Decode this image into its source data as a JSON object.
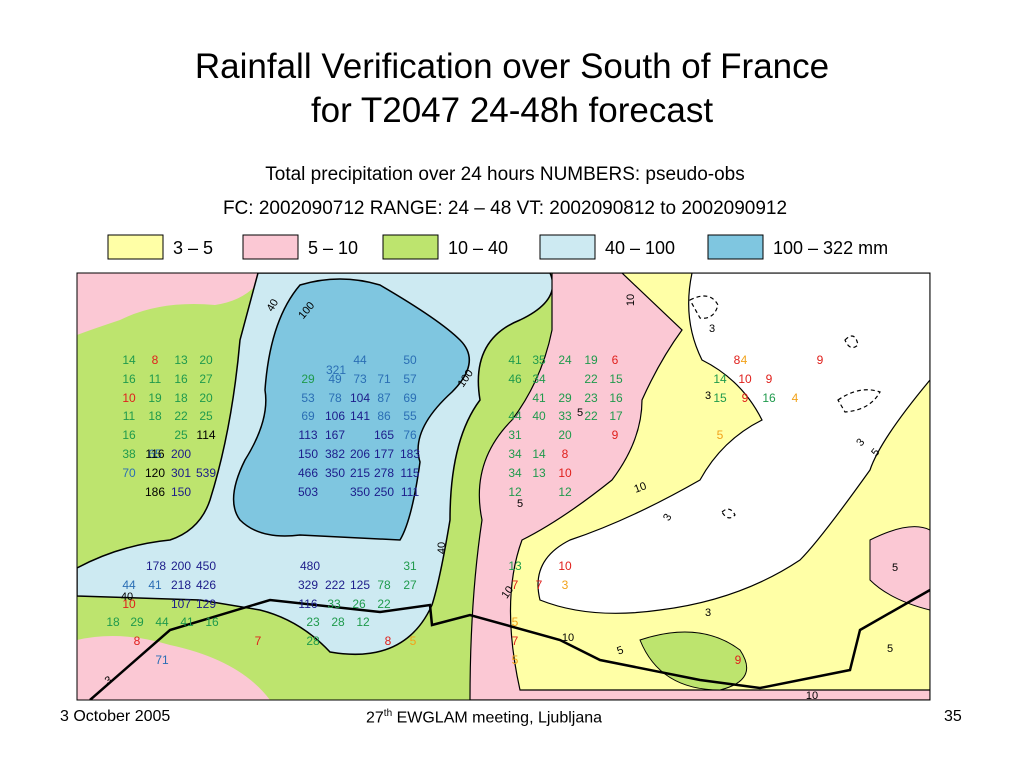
{
  "title": [
    "Rainfall Verification over South of France",
    "for T2047  24-48h forecast"
  ],
  "map": {
    "heading": [
      "Total precipitation over 24 hours  NUMBERS: pseudo-obs",
      "FC: 2002090712   RANGE:  24 – 48    VT: 2002090812 to 2002090912"
    ],
    "legend": [
      {
        "label": "3 – 5",
        "color": "#ffffa6"
      },
      {
        "label": "5 – 10",
        "color": "#fbc8d4"
      },
      {
        "label": "10 – 40",
        "color": "#bde46e"
      },
      {
        "label": "40 – 100",
        "color": "#cdeaf2"
      },
      {
        "label": "100 – 322 mm",
        "color": "#7fc6e0"
      }
    ],
    "observations": [
      {
        "color": "#1f9a4c",
        "values": [
          14,
          13,
          20,
          16,
          11,
          16,
          27,
          19,
          18,
          20,
          11,
          18,
          22,
          25,
          16,
          25,
          38,
          29,
          41,
          35,
          24,
          19,
          46,
          34,
          22,
          15,
          41,
          29,
          23,
          16,
          44,
          40,
          33,
          22,
          17,
          31,
          20,
          34,
          14,
          34,
          13,
          12,
          12,
          13,
          31,
          78,
          27,
          14,
          15,
          16,
          18,
          29,
          44,
          41,
          16,
          23,
          28,
          12,
          28,
          33,
          26,
          22
        ]
      },
      {
        "color": "#e0201c",
        "values": [
          8,
          10,
          6,
          8,
          9,
          10,
          9,
          9,
          9,
          8,
          10,
          10,
          7,
          7,
          10,
          8,
          7,
          8,
          7,
          9
        ]
      },
      {
        "color": "#f2a21a",
        "values": [
          4,
          4,
          5,
          3,
          5,
          5,
          5
        ]
      },
      {
        "color": "#2a6eb4",
        "values": [
          44,
          50,
          49,
          73,
          71,
          57,
          53,
          78,
          87,
          69,
          69,
          86,
          55,
          76,
          65,
          70,
          44,
          41,
          71,
          321
        ]
      },
      {
        "color": "#1c1c8a",
        "values": [
          104,
          106,
          141,
          113,
          167,
          165,
          150,
          382,
          206,
          177,
          183,
          466,
          350,
          215,
          278,
          115,
          503,
          350,
          250,
          111,
          200,
          301,
          539,
          150,
          178,
          200,
          450,
          480,
          218,
          426,
          107,
          129,
          329,
          222,
          125,
          116
        ]
      },
      {
        "color": "#000000",
        "values": [
          114,
          116,
          120,
          186
        ]
      }
    ],
    "contour_labels": [
      40,
      100,
      100,
      10,
      3,
      5,
      3,
      3,
      5,
      5,
      10,
      3,
      40,
      10,
      5,
      3,
      5,
      5,
      10,
      3,
      40,
      10
    ]
  },
  "footer": {
    "date": "3 October 2005",
    "event_number": "27",
    "event_suffix": "th",
    "event_text": " EWGLAM meeting, Ljubljana",
    "page": "35"
  }
}
